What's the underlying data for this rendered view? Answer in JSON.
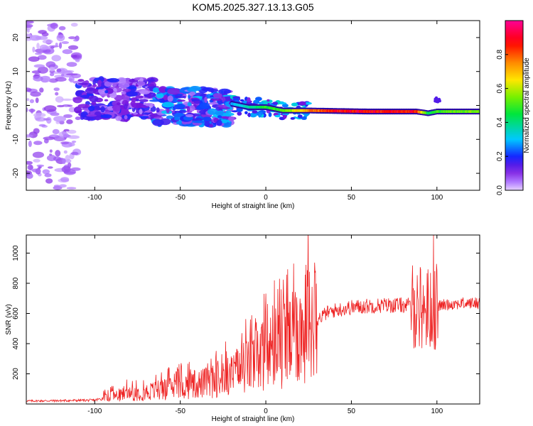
{
  "figure_title": "KOM5.2025.327.13.13.G05",
  "chart_data": [
    {
      "type": "heatmap",
      "name": "spectrogram",
      "title": "KOM5.2025.327.13.13.G05",
      "xlabel": "Height of straight line (km)",
      "ylabel": "Frequency (Hz)",
      "xlim": [
        -140,
        125
      ],
      "ylim": [
        -25,
        25
      ],
      "xticks": [
        -100,
        -50,
        0,
        50,
        100
      ],
      "xtick_labels": [
        "-100",
        "-50",
        "0",
        "50",
        "100"
      ],
      "yticks": [
        -20,
        -10,
        0,
        10,
        20
      ],
      "ytick_labels": [
        "-20",
        "-10",
        "0",
        "10",
        "20"
      ],
      "colorbar": {
        "label": "Normalized spectral amplitude",
        "range": [
          0,
          1
        ],
        "ticks": [
          0.0,
          0.2,
          0.4,
          0.6,
          0.8
        ],
        "tick_labels": [
          "0.0",
          "0.2",
          "0.4",
          "0.6",
          "0.8"
        ]
      },
      "ridge": {
        "description": "dominant spectral line",
        "points": [
          [
            -20,
            0.5
          ],
          [
            -10,
            -0.5
          ],
          [
            0,
            -0.5
          ],
          [
            10,
            -1.5
          ],
          [
            25,
            -1.5
          ],
          [
            60,
            -1.8
          ],
          [
            88,
            -1.8
          ],
          [
            95,
            -2.3
          ],
          [
            100,
            -1.8
          ],
          [
            125,
            -1.8
          ]
        ],
        "amplitude": [
          [
            -20,
            0.3
          ],
          [
            0,
            0.5
          ],
          [
            10,
            0.55
          ],
          [
            25,
            0.8
          ],
          [
            40,
            0.95
          ],
          [
            88,
            0.95
          ],
          [
            95,
            0.45
          ],
          [
            102,
            0.55
          ],
          [
            125,
            0.6
          ]
        ]
      },
      "scatter_regions": [
        {
          "x": [
            -140,
            -110
          ],
          "y": [
            -25,
            25
          ],
          "amplitude": 0.06
        },
        {
          "x": [
            -110,
            -65
          ],
          "y": [
            -4,
            8
          ],
          "amplitude": 0.12
        },
        {
          "x": [
            -65,
            -20
          ],
          "y": [
            -6,
            5
          ],
          "amplitude": 0.18
        }
      ]
    },
    {
      "type": "line",
      "name": "snr",
      "xlabel": "Height of straight line (km)",
      "ylabel": "SNR (v/v)",
      "xlim": [
        -140,
        125
      ],
      "ylim": [
        0,
        1120
      ],
      "xticks": [
        -100,
        -50,
        0,
        50,
        100
      ],
      "xtick_labels": [
        "-100",
        "-50",
        "0",
        "50",
        "100"
      ],
      "yticks": [
        200,
        400,
        600,
        800,
        1000
      ],
      "ytick_labels": [
        "200",
        "400",
        "600",
        "800",
        "1000"
      ],
      "color": "#ee2222",
      "envelope": [
        [
          -140,
          20
        ],
        [
          -120,
          22
        ],
        [
          -100,
          25
        ],
        [
          -90,
          50
        ],
        [
          -80,
          70
        ],
        [
          -70,
          80
        ],
        [
          -60,
          95
        ],
        [
          -50,
          115
        ],
        [
          -40,
          130
        ],
        [
          -30,
          150
        ],
        [
          -20,
          190
        ],
        [
          -15,
          220
        ],
        [
          -10,
          260
        ],
        [
          -5,
          300
        ],
        [
          0,
          330
        ],
        [
          5,
          350
        ],
        [
          10,
          380
        ],
        [
          15,
          420
        ],
        [
          20,
          470
        ],
        [
          25,
          520
        ],
        [
          30,
          560
        ],
        [
          35,
          600
        ],
        [
          40,
          620
        ],
        [
          50,
          640
        ],
        [
          60,
          650
        ],
        [
          70,
          655
        ],
        [
          80,
          655
        ],
        [
          88,
          650
        ],
        [
          95,
          630
        ],
        [
          100,
          650
        ],
        [
          110,
          665
        ],
        [
          125,
          670
        ]
      ],
      "spikes": [
        [
          -9,
          560
        ],
        [
          8,
          830
        ],
        [
          9,
          760
        ],
        [
          90,
          600
        ],
        [
          95,
          750
        ],
        [
          98,
          1120
        ],
        [
          99,
          360
        ],
        [
          96,
          380
        ]
      ]
    }
  ]
}
